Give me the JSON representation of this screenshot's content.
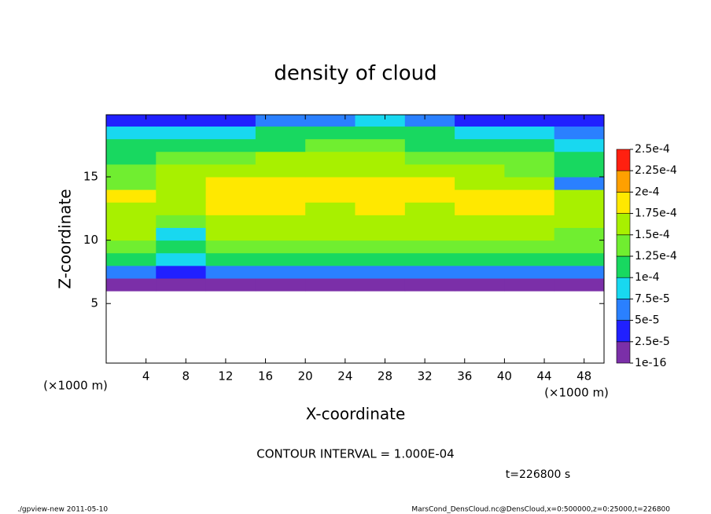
{
  "chart_data": {
    "type": "heatmap",
    "title": "density of cloud",
    "x_label": "X-coordinate",
    "y_label": "Z-coordinate",
    "x_unit": "(×1000 m)",
    "y_unit": "(×1000 m)",
    "xlim": [
      0,
      50
    ],
    "ylim": [
      0.3,
      19.9
    ],
    "xticks": [
      4,
      8,
      12,
      16,
      20,
      24,
      28,
      32,
      36,
      40,
      44,
      48
    ],
    "yticks": [
      5,
      10,
      15
    ],
    "x_edges": [
      0,
      5,
      10,
      15,
      20,
      25,
      30,
      35,
      40,
      45,
      50
    ],
    "z_edges": [
      6,
      7,
      8,
      9,
      10,
      11,
      12,
      13,
      14,
      15,
      16,
      17,
      18,
      19,
      20
    ],
    "values": [
      [
        1e-05,
        1e-05,
        1e-05,
        1e-05,
        1e-05,
        1e-05,
        1e-05,
        1e-05,
        1e-05,
        1e-05
      ],
      [
        6e-05,
        4e-05,
        6e-05,
        6e-05,
        6e-05,
        6e-05,
        6e-05,
        6e-05,
        6e-05,
        6e-05
      ],
      [
        0.00011,
        9e-05,
        0.00011,
        0.00011,
        0.00011,
        0.00011,
        0.00011,
        0.00011,
        0.00011,
        0.00011
      ],
      [
        0.00014,
        0.00012,
        0.00014,
        0.00014,
        0.00014,
        0.00014,
        0.00014,
        0.00014,
        0.00014,
        0.00013
      ],
      [
        0.00015,
        8e-05,
        0.00015,
        0.000155,
        0.000155,
        0.00015,
        0.00015,
        0.00015,
        0.00015,
        0.00014
      ],
      [
        0.00016,
        0.00013,
        0.00016,
        0.00017,
        0.00016,
        0.00016,
        0.00016,
        0.00016,
        0.000165,
        0.00015
      ],
      [
        0.00017,
        0.00016,
        0.000175,
        0.00018,
        0.00017,
        0.000175,
        0.00017,
        0.000175,
        0.00018,
        0.00016
      ],
      [
        0.00018,
        0.00015,
        0.000185,
        0.00019,
        0.00018,
        0.000185,
        0.00018,
        0.00018,
        0.000185,
        0.00015
      ],
      [
        0.00014,
        0.00016,
        0.00018,
        0.00019,
        0.000185,
        0.00018,
        0.000175,
        0.00017,
        0.00016,
        6e-05
      ],
      [
        0.00013,
        0.00015,
        0.00016,
        0.00017,
        0.00017,
        0.000165,
        0.00016,
        0.000155,
        0.00014,
        0.0001
      ],
      [
        0.00012,
        0.00013,
        0.00014,
        0.00015,
        0.00015,
        0.00015,
        0.00014,
        0.00014,
        0.00013,
        0.00012
      ],
      [
        0.00011,
        0.000115,
        0.00012,
        0.00012,
        0.000125,
        0.00013,
        0.00012,
        0.00012,
        0.00011,
        9e-05
      ],
      [
        8e-05,
        9e-05,
        9e-05,
        0.0001,
        0.0001,
        0.00011,
        0.0001,
        9e-05,
        8e-05,
        7e-05
      ],
      [
        3e-05,
        4e-05,
        4e-05,
        5e-05,
        6e-05,
        8e-05,
        5e-05,
        4e-05,
        3e-05,
        3e-05
      ]
    ],
    "levels": [
      {
        "value": 1e-16,
        "label": "1e-16"
      },
      {
        "value": 2.5e-05,
        "label": "2.5e-5"
      },
      {
        "value": 5e-05,
        "label": "5e-5"
      },
      {
        "value": 7.5e-05,
        "label": "7.5e-5"
      },
      {
        "value": 0.0001,
        "label": "1e-4"
      },
      {
        "value": 0.000125,
        "label": "1.25e-4"
      },
      {
        "value": 0.00015,
        "label": "1.5e-4"
      },
      {
        "value": 0.000175,
        "label": "1.75e-4"
      },
      {
        "value": 0.0002,
        "label": "2e-4"
      },
      {
        "value": 0.000225,
        "label": "2.25e-4"
      },
      {
        "value": 0.00025,
        "label": "2.5e-4"
      }
    ],
    "colors": [
      "#7b2fa8",
      "#2020ff",
      "#2a80ff",
      "#18d8f0",
      "#18d860",
      "#70ee30",
      "#a8f000",
      "#ffe800",
      "#ffa000",
      "#ff2010"
    ],
    "contour_note": "CONTOUR INTERVAL = 1.000E-04",
    "time_note": "t=226800 s",
    "footer_left": "./gpview-new  2011-05-10",
    "footer_right": "MarsCond_DensCloud.nc@DensCloud,x=0:500000,z=0:25000,t=226800"
  }
}
